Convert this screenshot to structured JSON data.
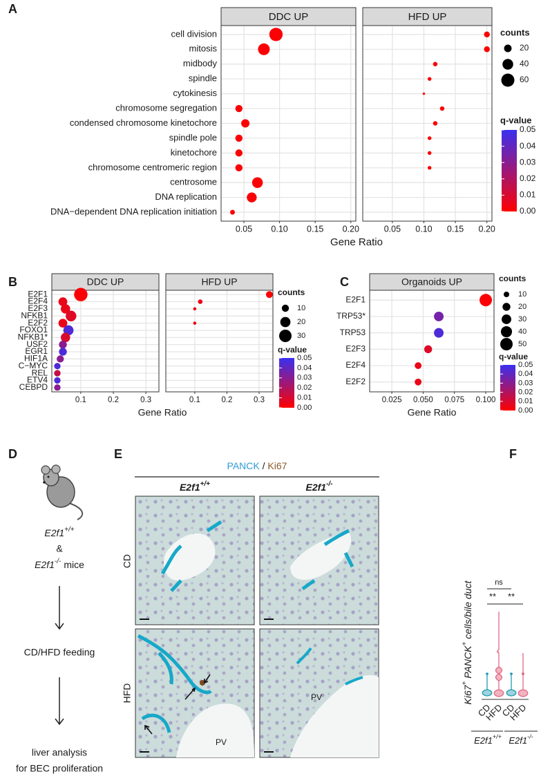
{
  "panel_labels": {
    "a": "A",
    "b": "B",
    "c": "C",
    "d": "D",
    "e": "E",
    "f": "F"
  },
  "chart_data": [
    {
      "type": "dot",
      "x_label": "Gene Ratio",
      "categories": [
        "cell division",
        "mitosis",
        "midbody",
        "spindle",
        "cytokinesis",
        "chromosome segregation",
        "condensed chromosome kinetochore",
        "spindle pole",
        "kinetochore",
        "chromosome centromeric region",
        "centrosome",
        "DNA replication",
        "DNA−dependent DNA replication initiation"
      ],
      "facets": [
        {
          "title": "DDC UP",
          "xlim": [
            0.018,
            0.207
          ],
          "xticks": [
            0.05,
            {
              "value": 0.1,
              "label": "0.10"
            },
            0.15,
            {
              "value": 0.2,
              "label": "0.20"
            }
          ],
          "values": [
            0.095,
            0.078,
            null,
            null,
            null,
            0.043,
            0.052,
            0.043,
            0.043,
            0.043,
            0.069,
            0.061,
            0.034
          ],
          "counts": [
            62,
            48,
            null,
            null,
            null,
            18,
            24,
            18,
            18,
            18,
            40,
            34,
            8
          ],
          "qvalues": [
            0.001,
            0.001,
            null,
            null,
            null,
            0.001,
            0.001,
            0.001,
            0.001,
            0.001,
            0.001,
            0.001,
            0.001
          ]
        },
        {
          "title": "HFD UP",
          "xlim": [
            0.003,
            0.208
          ],
          "xticks": [
            0.05,
            {
              "value": 0.1,
              "label": "0.10"
            },
            0.15,
            {
              "value": 0.2,
              "label": "0.20"
            }
          ],
          "values": [
            0.2,
            0.2,
            0.118,
            0.109,
            0.1,
            0.129,
            0.118,
            0.109,
            0.109,
            0.109,
            null,
            null,
            null
          ],
          "counts": [
            12,
            12,
            7,
            5,
            2,
            7,
            7,
            5,
            5,
            5,
            null,
            null,
            null
          ],
          "qvalues": [
            0.001,
            0.001,
            0.001,
            0.001,
            0.001,
            0.001,
            0.001,
            0.001,
            0.001,
            0.001,
            null,
            null,
            null
          ]
        }
      ],
      "size_legend": {
        "title": "counts",
        "values": [
          20,
          40,
          60
        ]
      },
      "color_legend": {
        "title": "q-value",
        "lim": [
          0,
          0.05
        ],
        "ticks": [
          {
            "value": 0,
            "label": "0.00"
          },
          0.01,
          0.02,
          0.03,
          0.04,
          0.05
        ],
        "low": "#ff0000",
        "high": "#3a30f0"
      }
    },
    {
      "type": "dot",
      "x_label": "Gene Ratio",
      "categories": [
        "E2F1",
        "E2F4",
        "E2F3",
        "NFKB1",
        "E2F2",
        "FOXO1",
        "NFKB1*",
        "USF2",
        "EGR1",
        "HIF1A",
        "C−MYC",
        "REL",
        "ETV4",
        "CEBPD"
      ],
      "facets": [
        {
          "title": "DDC UP",
          "xlim": [
            0.011,
            0.34
          ],
          "xticks": [
            0.1,
            0.2,
            0.3
          ],
          "values": [
            0.1,
            0.045,
            0.053,
            0.07,
            0.045,
            0.062,
            0.053,
            0.045,
            0.045,
            0.037,
            0.028,
            0.028,
            0.028,
            0.028
          ],
          "counts": [
            35,
            15,
            17,
            22,
            15,
            20,
            17,
            12,
            12,
            10,
            8,
            8,
            8,
            8
          ],
          "qvalues": [
            0.001,
            0.005,
            0.005,
            0.008,
            0.005,
            0.045,
            0.01,
            0.03,
            0.045,
            0.03,
            0.045,
            0.015,
            0.045,
            0.03
          ]
        },
        {
          "title": "HFD UP",
          "xlim": [
            0.01,
            0.343
          ],
          "xticks": [
            0.1,
            0.2,
            0.3
          ],
          "values": [
            0.332,
            0.117,
            0.1,
            null,
            0.1,
            null,
            null,
            null,
            null,
            null,
            null,
            null,
            null,
            null
          ],
          "counts": [
            9,
            4,
            2,
            null,
            2,
            null,
            null,
            null,
            null,
            null,
            null,
            null,
            null,
            null
          ],
          "qvalues": [
            0.001,
            0.005,
            0.005,
            null,
            0.005,
            null,
            null,
            null,
            null,
            null,
            null,
            null,
            null,
            null
          ]
        }
      ],
      "size_legend": {
        "title": "counts",
        "values": [
          10,
          20,
          30
        ]
      },
      "color_legend": {
        "title": "q-value",
        "lim": [
          0,
          0.05
        ],
        "ticks": [
          {
            "value": 0,
            "label": "0.00"
          },
          0.01,
          0.02,
          0.03,
          0.04,
          0.05
        ],
        "low": "#ff0000",
        "high": "#3a30f0"
      }
    },
    {
      "type": "dot",
      "x_label": "Gene Ratio",
      "categories": [
        "E2F1",
        "TRP53*",
        "TRP53",
        "E2F3",
        "E2F4",
        "E2F2"
      ],
      "facets": [
        {
          "title": "Organoids UP",
          "xlim": [
            0.0073,
            0.1066
          ],
          "xticks": [
            0.025,
            {
              "value": 0.05,
              "label": "0.050"
            },
            0.075,
            {
              "value": 0.1,
              "label": "0.100"
            }
          ],
          "values": [
            0.1,
            0.0625,
            0.0625,
            0.054,
            0.046,
            0.046
          ],
          "counts": [
            50,
            30,
            30,
            20,
            15,
            15
          ],
          "qvalues": [
            0.001,
            0.035,
            0.045,
            0.008,
            0.005,
            0.005
          ]
        }
      ],
      "size_legend": {
        "title": "counts",
        "values": [
          10,
          20,
          30,
          40,
          50
        ]
      },
      "color_legend": {
        "title": "q-value",
        "lim": [
          0,
          0.05
        ],
        "ticks": [
          {
            "value": 0,
            "label": "0.00"
          },
          0.01,
          0.02,
          0.03,
          0.04,
          0.05
        ],
        "low": "#ff0000",
        "high": "#3a30f0"
      }
    }
  ],
  "schematic": {
    "genotype_wt": {
      "base": "E2f1",
      "sup": "+/+"
    },
    "and": "&",
    "genotype_ko": {
      "base": "E2f1",
      "sup": "-/-"
    },
    "mice": "mice",
    "step_2": "CD/HFD feeding",
    "step_3": [
      "liver analysis",
      "for BEC proliferation"
    ]
  },
  "histology": {
    "stain_1": "PANCK",
    "separator": "/",
    "stain_2": "Ki67",
    "columns": [
      {
        "base": "E2f1",
        "sup": "+/+"
      },
      {
        "base": "E2f1",
        "sup": "-/-"
      }
    ],
    "rows": [
      "CD",
      "HFD"
    ],
    "vessel_labels": [
      "PV",
      "PV"
    ]
  },
  "violin": {
    "y_label": {
      "a": "Ki67",
      "sup_a": "+",
      "b": "PANCK",
      "sup_b": "+",
      "c": "cells/bile duct"
    },
    "categories": [
      "CD",
      "HFD",
      "CD",
      "HFD"
    ],
    "groups": [
      {
        "base": "E2f1",
        "sup": "+/+"
      },
      {
        "base": "E2f1",
        "sup": "-/-"
      }
    ],
    "significance": [
      "**",
      "ns",
      "**"
    ]
  }
}
